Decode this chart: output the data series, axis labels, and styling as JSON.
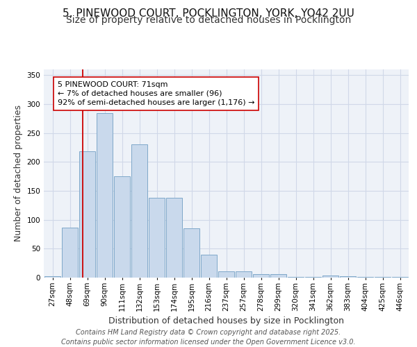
{
  "title_line1": "5, PINEWOOD COURT, POCKLINGTON, YORK, YO42 2UU",
  "title_line2": "Size of property relative to detached houses in Pocklington",
  "xlabel": "Distribution of detached houses by size in Pocklington",
  "ylabel": "Number of detached properties",
  "categories": [
    "27sqm",
    "48sqm",
    "69sqm",
    "90sqm",
    "111sqm",
    "132sqm",
    "153sqm",
    "174sqm",
    "195sqm",
    "216sqm",
    "237sqm",
    "257sqm",
    "278sqm",
    "299sqm",
    "320sqm",
    "341sqm",
    "362sqm",
    "383sqm",
    "404sqm",
    "425sqm",
    "446sqm"
  ],
  "values": [
    2,
    86,
    218,
    285,
    175,
    230,
    138,
    138,
    85,
    40,
    11,
    11,
    6,
    6,
    1,
    1,
    4,
    2,
    1,
    1,
    1
  ],
  "bar_color": "#c9d9ec",
  "bar_edge_color": "#7fa8c9",
  "grid_color": "#d0d8e8",
  "background_color": "#eef2f8",
  "vline_x": 1.75,
  "vline_color": "#cc0000",
  "annotation_text": "5 PINEWOOD COURT: 71sqm\n← 7% of detached houses are smaller (96)\n92% of semi-detached houses are larger (1,176) →",
  "annotation_box_color": "#ffffff",
  "annotation_box_edge_color": "#cc0000",
  "ylim": [
    0,
    360
  ],
  "yticks": [
    0,
    50,
    100,
    150,
    200,
    250,
    300,
    350
  ],
  "footer_line1": "Contains HM Land Registry data © Crown copyright and database right 2025.",
  "footer_line2": "Contains public sector information licensed under the Open Government Licence v3.0.",
  "title_fontsize": 11,
  "subtitle_fontsize": 10,
  "axis_label_fontsize": 9,
  "tick_fontsize": 7.5,
  "annotation_fontsize": 8,
  "footer_fontsize": 7
}
